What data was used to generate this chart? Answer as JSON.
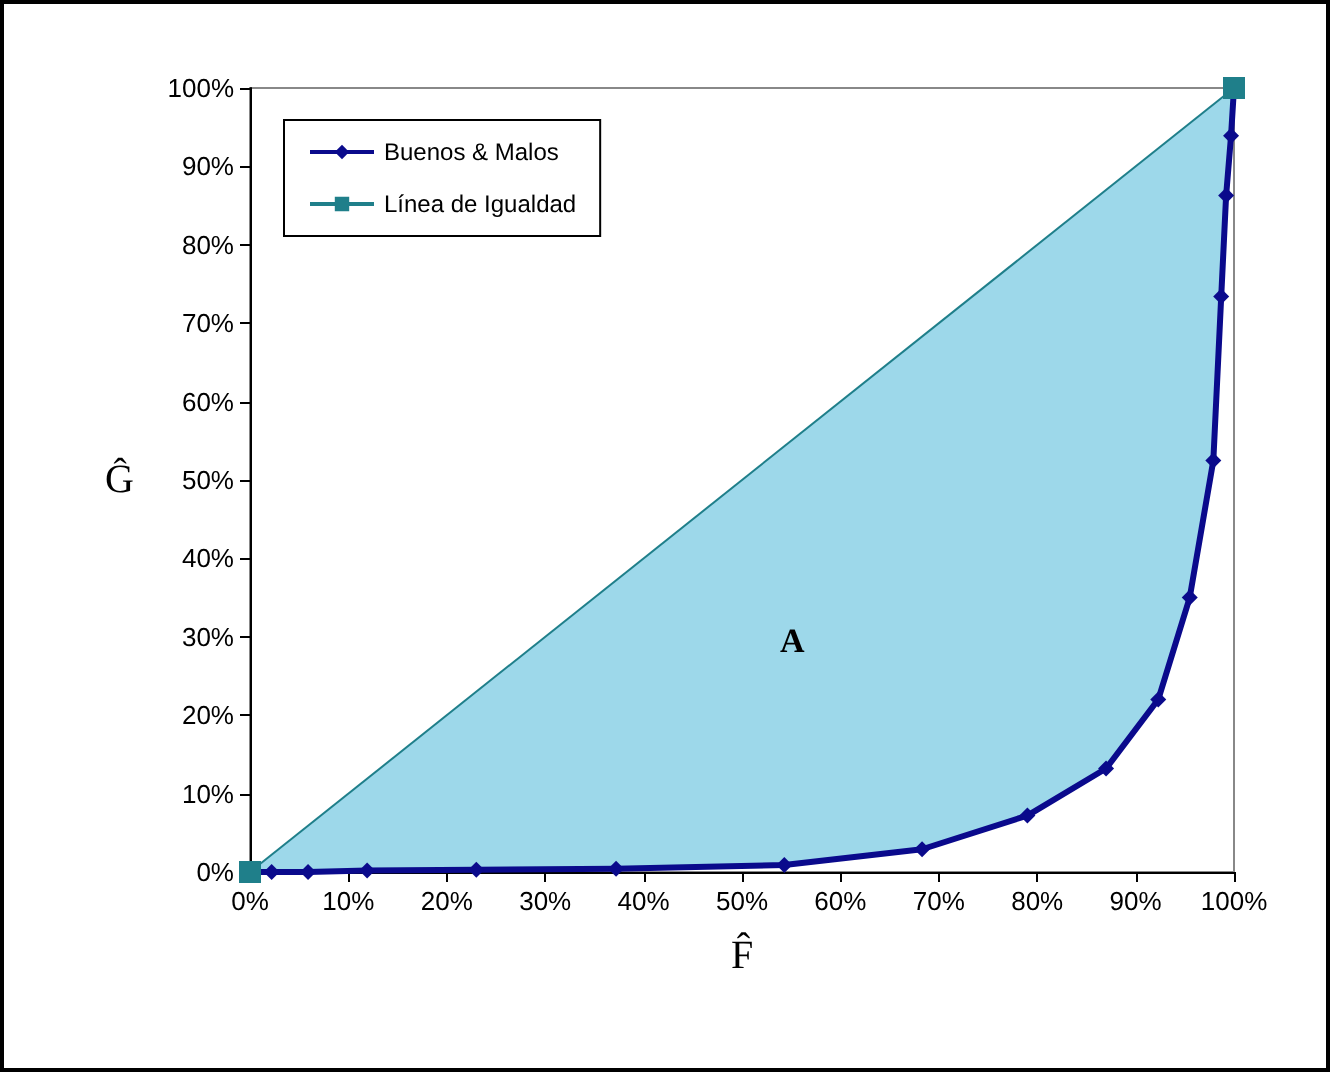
{
  "chart_data": {
    "type": "line",
    "xlabel": "F̂",
    "ylabel": "Ĝ",
    "xlim": [
      0,
      100
    ],
    "ylim": [
      0,
      100
    ],
    "xticks": [
      {
        "value": 0,
        "label": "0%"
      },
      {
        "value": 10,
        "label": "10%"
      },
      {
        "value": 20,
        "label": "20%"
      },
      {
        "value": 30,
        "label": "30%"
      },
      {
        "value": 40,
        "label": "40%"
      },
      {
        "value": 50,
        "label": "50%"
      },
      {
        "value": 60,
        "label": "60%"
      },
      {
        "value": 70,
        "label": "70%"
      },
      {
        "value": 80,
        "label": "80%"
      },
      {
        "value": 90,
        "label": "90%"
      },
      {
        "value": 100,
        "label": "100%"
      }
    ],
    "yticks": [
      {
        "value": 0,
        "label": "0%"
      },
      {
        "value": 10,
        "label": "10%"
      },
      {
        "value": 20,
        "label": "20%"
      },
      {
        "value": 30,
        "label": "30%"
      },
      {
        "value": 40,
        "label": "40%"
      },
      {
        "value": 50,
        "label": "50%"
      },
      {
        "value": 60,
        "label": "60%"
      },
      {
        "value": 70,
        "label": "70%"
      },
      {
        "value": 80,
        "label": "80%"
      },
      {
        "value": 90,
        "label": "90%"
      },
      {
        "value": 100,
        "label": "100%"
      }
    ],
    "series": [
      {
        "name": "Buenos & Malos",
        "marker": "diamond",
        "color": "#0a0a8c",
        "x": [
          0,
          2.2,
          5.9,
          11.9,
          23,
          37.2,
          54.3,
          68.3,
          79,
          87,
          92.3,
          95.5,
          97.9,
          98.7,
          99.2,
          99.7,
          100
        ],
        "values": [
          0,
          0,
          0,
          0.2,
          0.3,
          0.4,
          0.9,
          2.9,
          7.2,
          13.2,
          22,
          35,
          52.5,
          73.4,
          86.3,
          93.9,
          100
        ],
        "lower": [
          0,
          0,
          0,
          0.2,
          0.3,
          0.4,
          0.9,
          2.9,
          7.2,
          13.2,
          22,
          35,
          52.5,
          73.4,
          86.3,
          93.9,
          100
        ],
        "upper": [
          0,
          2.2,
          5.9,
          11.9,
          23,
          37.2,
          54.3,
          68.3,
          79,
          87,
          92.3,
          95.5,
          97.9,
          98.7,
          99.2,
          99.7,
          100
        ]
      },
      {
        "name": "Línea de Igualdad",
        "type": "line",
        "marker": "square",
        "color": "#1f7f8a",
        "x": [
          0,
          100
        ],
        "values": [
          0,
          100
        ]
      }
    ],
    "annotations": [
      "A"
    ],
    "grid": false,
    "legend": "top left"
  }
}
